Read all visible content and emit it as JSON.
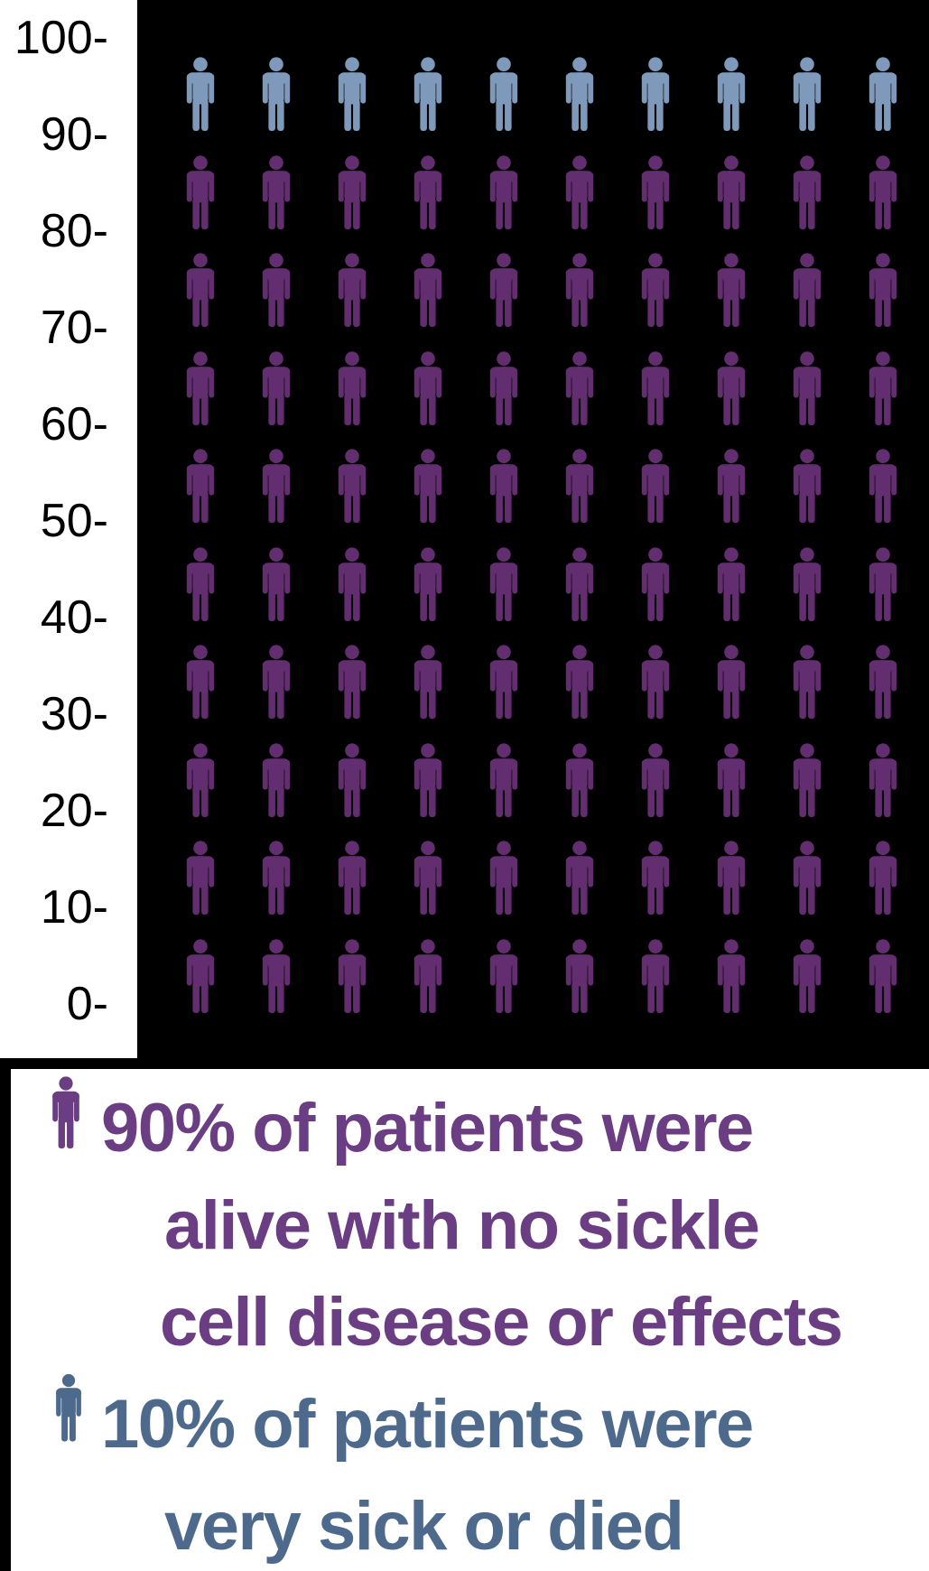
{
  "chart_data": {
    "type": "pictograph",
    "title": "",
    "description": "Waffle / pictograph of 100 person icons, 10 columns x 10 rows, on black background",
    "total_icons": 100,
    "icons_per_row": 10,
    "rows": 10,
    "y_axis": {
      "min": 0,
      "max": 100,
      "step": 10,
      "ticks": [
        100,
        90,
        80,
        70,
        60,
        50,
        40,
        30,
        20,
        10,
        0
      ],
      "tick_labels": [
        "100-",
        "90-",
        "80-",
        "70-",
        "60-",
        "50-",
        "40-",
        "30-",
        "20-",
        "10-",
        "0-"
      ]
    },
    "series": [
      {
        "name": "10% of patients were very sick or died",
        "value": 10,
        "color": "#7f99ba",
        "position": "top row"
      },
      {
        "name": "90% of patients were alive with no sickle cell disease or effects",
        "value": 90,
        "color": "#622e6f"
      }
    ],
    "background_color": "#000000",
    "axis_background_color": "#ffffff",
    "legend_position": "bottom"
  },
  "legend": {
    "entries": [
      {
        "icon": "person-icon",
        "color": "#6b3d82",
        "value_pct": 90,
        "lines": [
          "90% of patients were",
          "alive with no sickle",
          "cell disease or effects"
        ]
      },
      {
        "icon": "person-icon",
        "color": "#4d6a8d",
        "value_pct": 10,
        "lines": [
          "10% of patients were",
          "very sick or died"
        ]
      }
    ]
  }
}
